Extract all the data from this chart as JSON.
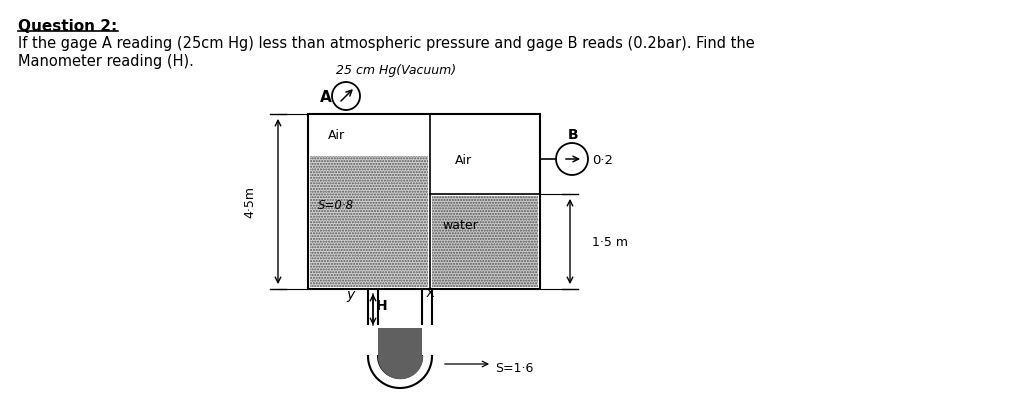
{
  "title_line1": "Question 2:",
  "title_line2": "If the gage A reading (25cm Hg) less than atmospheric pressure and gage B reads (0.2bar). Find the",
  "title_line3": "Manometer reading (H).",
  "bg_color": "#ffffff",
  "text_color": "#000000",
  "label_A": "A",
  "label_B": "B",
  "label_Air1": "Air",
  "label_Air2": "Air",
  "label_water": "water",
  "label_H": "H",
  "label_X": "X",
  "label_Y": "y",
  "label_vacuum": "25 cm Hg(Vacuum)",
  "label_S16": "S=1·6",
  "label_45m": "4·5m",
  "label_15m": "1·5 m",
  "label_B_val": "0·2",
  "label_S08": "S=0·8"
}
